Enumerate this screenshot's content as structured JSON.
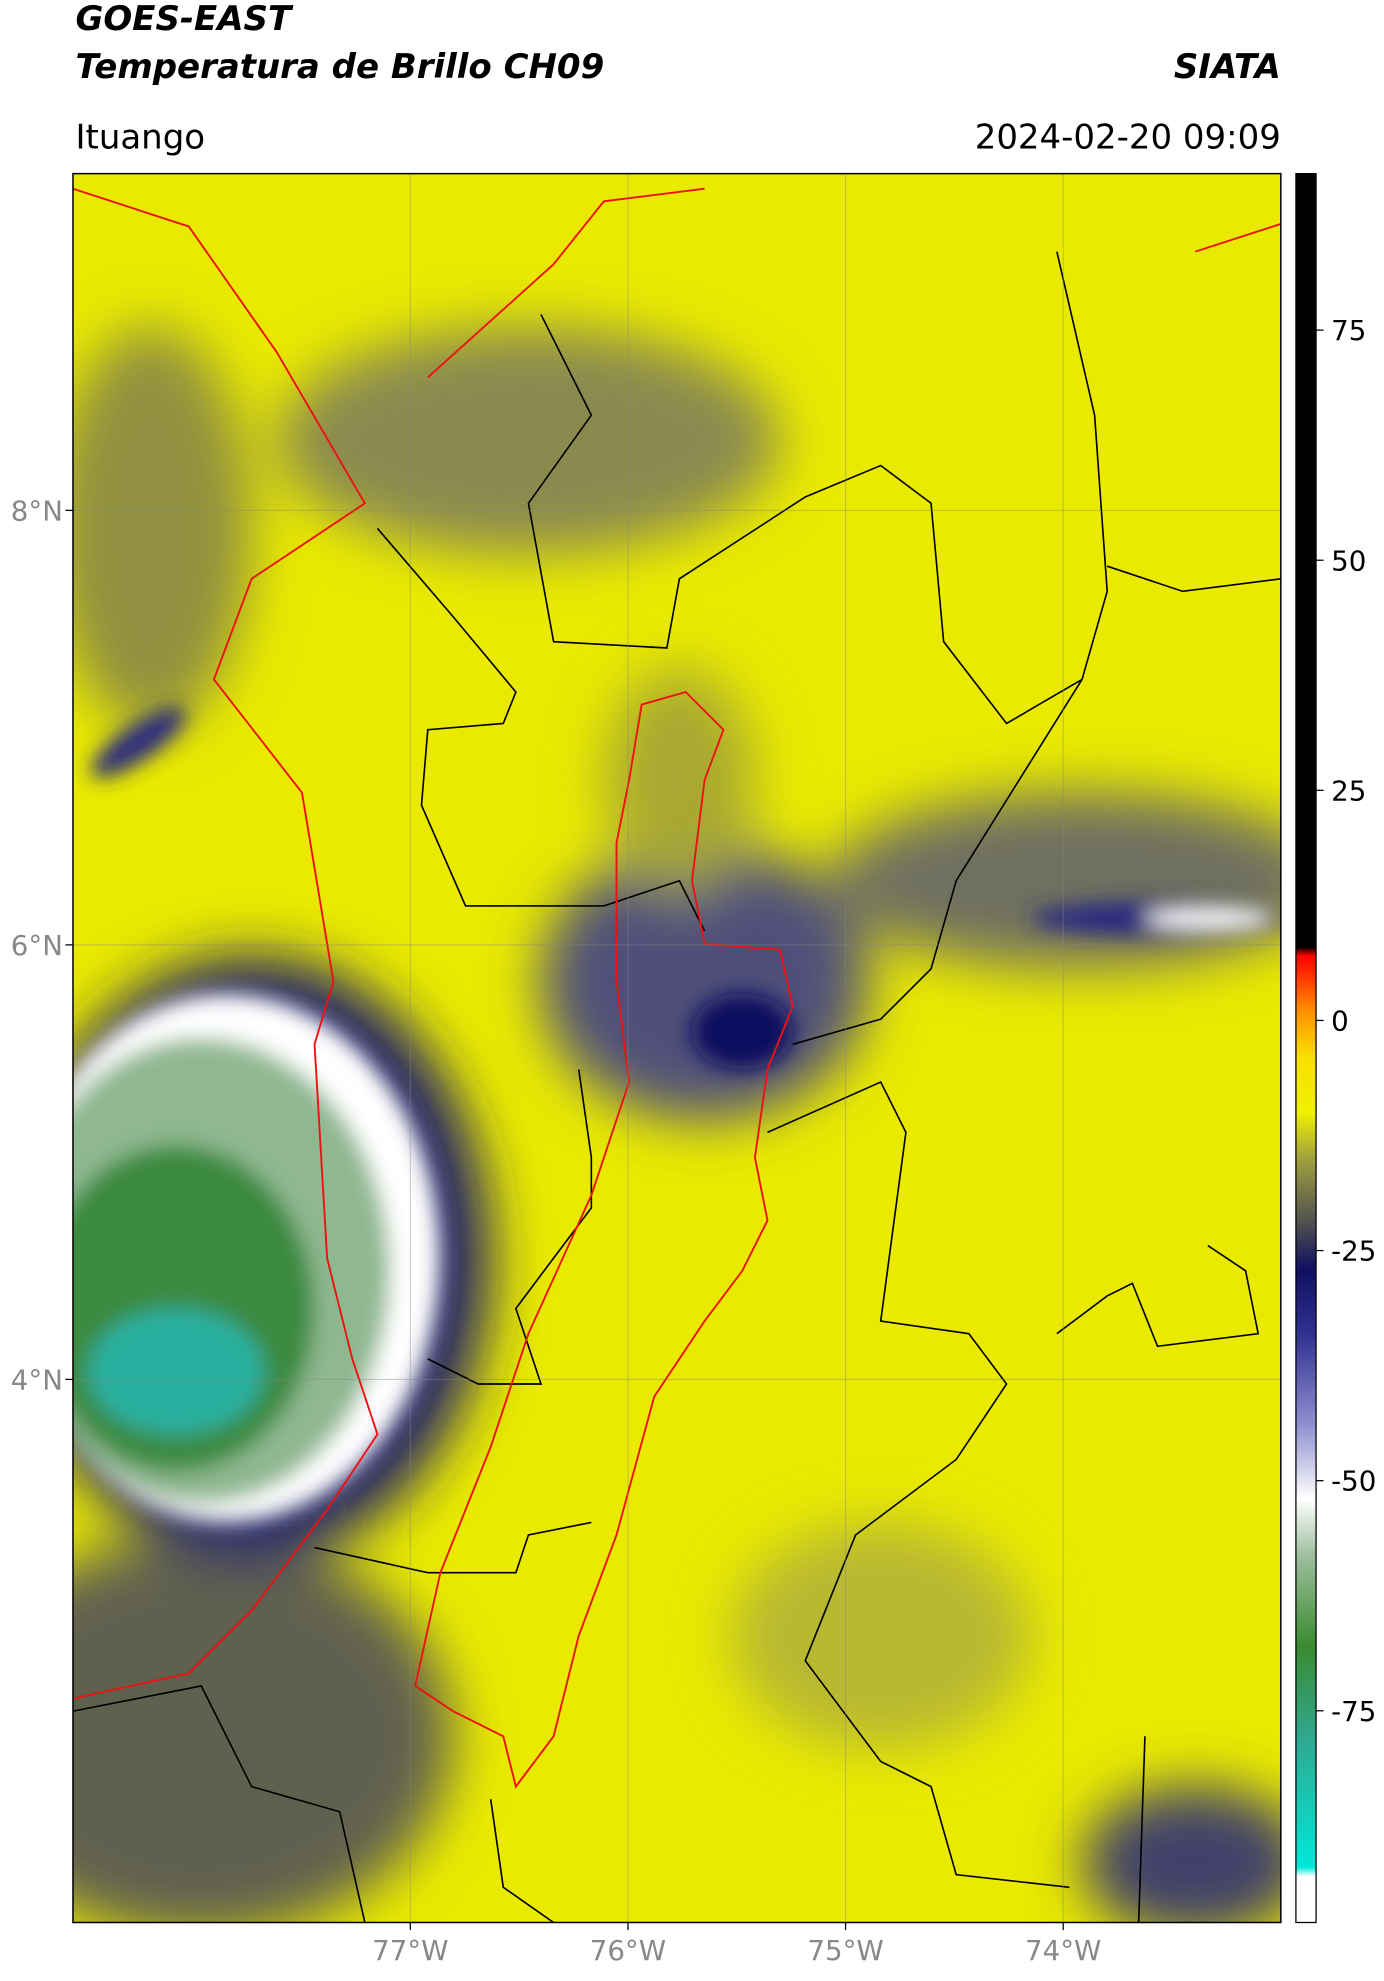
{
  "header": {
    "title": "GOES-EAST",
    "subtitle": "Temperatura de Brillo CH09",
    "credit": "SIATA",
    "location": "Ituango",
    "datetime": "2024-02-20 09:09"
  },
  "map": {
    "xlim": [
      -78.55,
      -73.0
    ],
    "ylim": [
      1.5,
      9.55
    ],
    "xticks": [
      {
        "value": -77,
        "label": "77°W"
      },
      {
        "value": -76,
        "label": "76°W"
      },
      {
        "value": -75,
        "label": "75°W"
      },
      {
        "value": -74,
        "label": "74°W"
      }
    ],
    "yticks": [
      {
        "value": 4,
        "label": "4°N"
      },
      {
        "value": 6,
        "label": "6°N"
      },
      {
        "value": 8,
        "label": "8°N"
      }
    ],
    "grid": true
  },
  "colorbar": {
    "lim": [
      -98,
      92
    ],
    "ticks": [
      -75,
      -50,
      -25,
      0,
      25,
      50,
      75
    ],
    "colormap": [
      {
        "value": -98,
        "color": "#ffffff"
      },
      {
        "value": -93,
        "color": "#ffffff"
      },
      {
        "value": -92,
        "color": "#00e8d8"
      },
      {
        "value": -78,
        "color": "#30a890"
      },
      {
        "value": -68,
        "color": "#3a8a30"
      },
      {
        "value": -58,
        "color": "#a0c0a0"
      },
      {
        "value": -52,
        "color": "#ffffff"
      },
      {
        "value": -44,
        "color": "#9090d0"
      },
      {
        "value": -34,
        "color": "#303090"
      },
      {
        "value": -27,
        "color": "#101060"
      },
      {
        "value": -22,
        "color": "#505050"
      },
      {
        "value": -15,
        "color": "#a0a040"
      },
      {
        "value": -10,
        "color": "#f0f000"
      },
      {
        "value": -4,
        "color": "#f8e000"
      },
      {
        "value": 1,
        "color": "#ff9000"
      },
      {
        "value": 7,
        "color": "#ff0000"
      },
      {
        "value": 8,
        "color": "#000000"
      },
      {
        "value": 92,
        "color": "#000000"
      }
    ]
  }
}
